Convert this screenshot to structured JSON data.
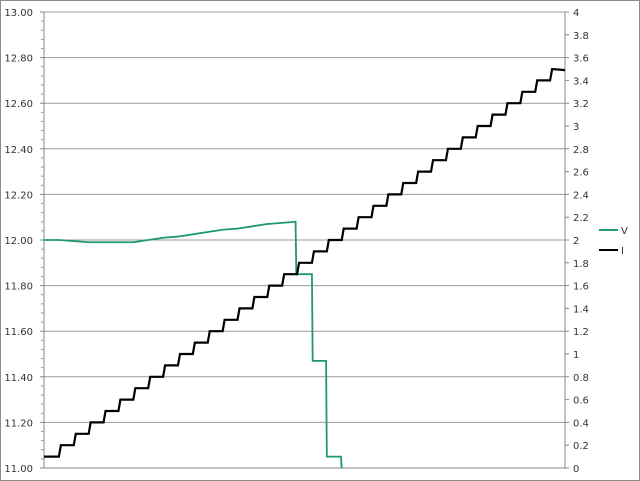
{
  "chart_data": {
    "type": "line",
    "title": "",
    "xlabel": "",
    "ylabel": "",
    "y2label": "",
    "grid": true,
    "legend_position": "right",
    "xlim": [
      0,
      35
    ],
    "ylim": [
      11.0,
      13.0
    ],
    "y2lim": [
      0,
      4
    ],
    "y_ticks": [
      "11.00",
      "11.20",
      "11.40",
      "11.60",
      "11.80",
      "12.00",
      "12.20",
      "12.40",
      "12.60",
      "12.80",
      "13.00"
    ],
    "y2_ticks": [
      "0",
      "0.2",
      "0.4",
      "0.6",
      "0.8",
      "1",
      "1.2",
      "1.4",
      "1.6",
      "1.8",
      "2",
      "2.2",
      "2.4",
      "2.6",
      "2.8",
      "3",
      "3.2",
      "3.4",
      "3.6",
      "3.8",
      "4"
    ],
    "series": [
      {
        "name": "V",
        "axis": "left",
        "color": "#1e9a6c",
        "x": [
          0,
          1,
          2,
          3,
          4,
          5,
          6,
          7,
          8,
          9,
          10,
          11,
          12,
          13,
          14,
          15,
          16,
          16.9,
          16.95,
          18.0,
          18.05,
          18.95,
          19.0,
          19.95,
          20.0
        ],
        "y": [
          12.0,
          12.0,
          11.995,
          11.99,
          11.99,
          11.99,
          11.99,
          12.0,
          12.01,
          12.015,
          12.025,
          12.035,
          12.045,
          12.05,
          12.06,
          12.07,
          12.075,
          12.08,
          11.85,
          11.85,
          11.47,
          11.47,
          11.05,
          11.05,
          11.0
        ]
      },
      {
        "name": "I",
        "axis": "right",
        "color": "#000000",
        "step": true,
        "values": [
          0.1,
          0.2,
          0.3,
          0.4,
          0.5,
          0.6,
          0.7,
          0.8,
          0.9,
          1.0,
          1.1,
          1.2,
          1.3,
          1.4,
          1.5,
          1.6,
          1.7,
          1.8,
          1.9,
          2.0,
          2.1,
          2.2,
          2.3,
          2.4,
          2.5,
          2.6,
          2.7,
          2.8,
          2.9,
          3.0,
          3.1,
          3.2,
          3.3,
          3.4,
          3.5
        ]
      }
    ]
  }
}
